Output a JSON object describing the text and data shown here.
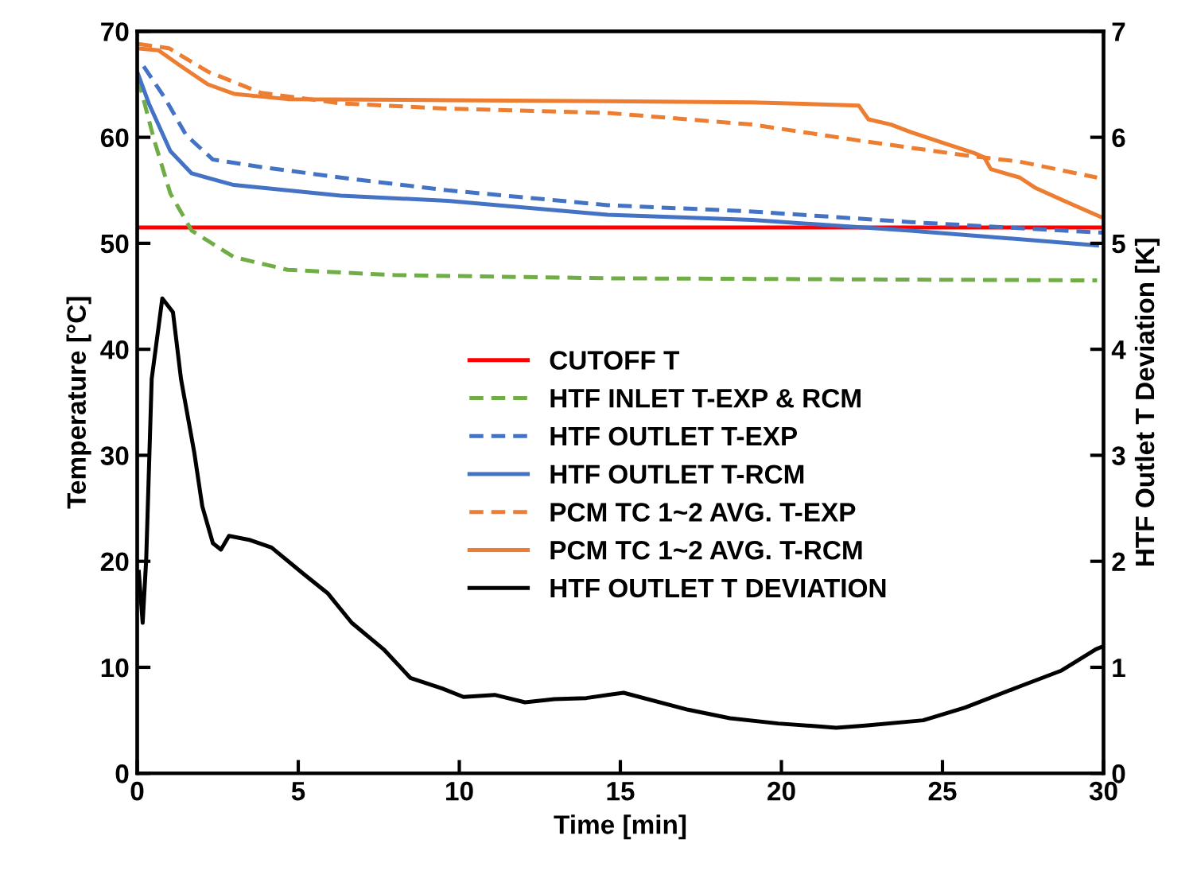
{
  "chart_data": {
    "type": "line",
    "xlabel": "Time [min]",
    "ylabel": "Temperature [°C]",
    "y2label": "HTF Outlet T Deviation [K]",
    "xlim": [
      0,
      30
    ],
    "xticks": [
      0,
      5,
      10,
      15,
      20,
      25,
      30
    ],
    "ylim": [
      0,
      70
    ],
    "yticks": [
      0,
      10,
      20,
      30,
      40,
      50,
      60,
      70
    ],
    "y2lim": [
      0,
      7
    ],
    "y2ticks": [
      0,
      1,
      2,
      3,
      4,
      5,
      6,
      7
    ],
    "grid": false,
    "legend": "center",
    "marker": "none",
    "series": [
      {
        "name": "CUTOFF T",
        "color": "#ff0000",
        "line_style": "solid",
        "x": [
          0,
          30
        ],
        "values": [
          51.5,
          51.5
        ]
      },
      {
        "name": "HTF INLET T-EXP & RCM",
        "color": "#70ad47",
        "line_style": "dashed",
        "x": [
          0.03,
          0.53,
          1.03,
          1.69,
          3.0,
          4.67,
          7.98,
          14.6,
          29.8
        ],
        "values": [
          65.5,
          59.7,
          54.7,
          51.2,
          48.7,
          47.5,
          47.0,
          46.7,
          46.5
        ]
      },
      {
        "name": "HTF OUTLET T-EXP",
        "color": "#4472c4",
        "line_style": "dashed",
        "x": [
          0.2,
          0.86,
          1.52,
          2.35,
          3.84,
          6.32,
          9.64,
          14.6,
          19.1,
          24.0,
          30
        ],
        "values": [
          66.7,
          63.7,
          60.2,
          57.9,
          57.2,
          56.2,
          55.0,
          53.6,
          53.0,
          52.0,
          51.0
        ]
      },
      {
        "name": "HTF OUTLET T-RCM",
        "color": "#4472c4",
        "line_style": "solid",
        "x": [
          0,
          0.36,
          1.03,
          1.69,
          3.0,
          6.32,
          9.64,
          14.6,
          19.1,
          24.0,
          29.8
        ],
        "values": [
          66.2,
          63.2,
          58.7,
          56.6,
          55.5,
          54.5,
          54.0,
          52.7,
          52.2,
          51.2,
          49.8
        ]
      },
      {
        "name": "PCM TC 1~2 AVG. T-EXP",
        "color": "#ed7d31",
        "line_style": "dashed",
        "x": [
          0.03,
          0.99,
          2.19,
          3.84,
          6.32,
          9.64,
          14.6,
          19.1,
          22.4,
          25.7,
          27.4,
          29.8
        ],
        "values": [
          68.8,
          68.4,
          66.2,
          64.2,
          63.2,
          62.7,
          62.3,
          61.2,
          59.7,
          58.3,
          57.7,
          56.2
        ]
      },
      {
        "name": "PCM TC 1~2 AVG. T-RCM",
        "color": "#ed7d31",
        "line_style": "solid",
        "x": [
          0,
          0.66,
          1.36,
          2.19,
          3.0,
          4.67,
          9.64,
          14.6,
          19.1,
          22.4,
          22.7,
          23.4,
          24.0,
          25.0,
          26.0,
          26.3,
          26.5,
          27.4,
          27.9,
          29.0,
          29.9
        ],
        "values": [
          68.4,
          68.2,
          66.7,
          65.0,
          64.1,
          63.6,
          63.5,
          63.4,
          63.3,
          63.0,
          61.7,
          61.2,
          60.5,
          59.5,
          58.5,
          58.1,
          57.0,
          56.2,
          55.2,
          53.7,
          52.5
        ]
      },
      {
        "name": "HTF OUTLET T DEVIATION",
        "color": "#000000",
        "line_style": "solid",
        "axis": "y2",
        "x": [
          0.05,
          0.17,
          0.28,
          0.45,
          0.78,
          1.11,
          1.36,
          1.77,
          2.02,
          2.35,
          2.6,
          2.85,
          3.51,
          4.17,
          5.17,
          5.91,
          6.66,
          7.65,
          8.48,
          9.47,
          10.13,
          11.1,
          12.04,
          12.95,
          13.94,
          15.1,
          17.1,
          18.4,
          19.9,
          21.7,
          22.6,
          24.4,
          25.7,
          27.4,
          28.7,
          29.76,
          30
        ],
        "values": [
          1.9,
          1.42,
          2.02,
          3.72,
          4.48,
          4.35,
          3.72,
          3.03,
          2.52,
          2.17,
          2.11,
          2.24,
          2.2,
          2.13,
          1.88,
          1.7,
          1.42,
          1.17,
          0.9,
          0.8,
          0.72,
          0.74,
          0.67,
          0.7,
          0.71,
          0.76,
          0.6,
          0.52,
          0.47,
          0.43,
          0.45,
          0.5,
          0.62,
          0.82,
          0.97,
          1.17,
          1.2
        ]
      }
    ]
  }
}
